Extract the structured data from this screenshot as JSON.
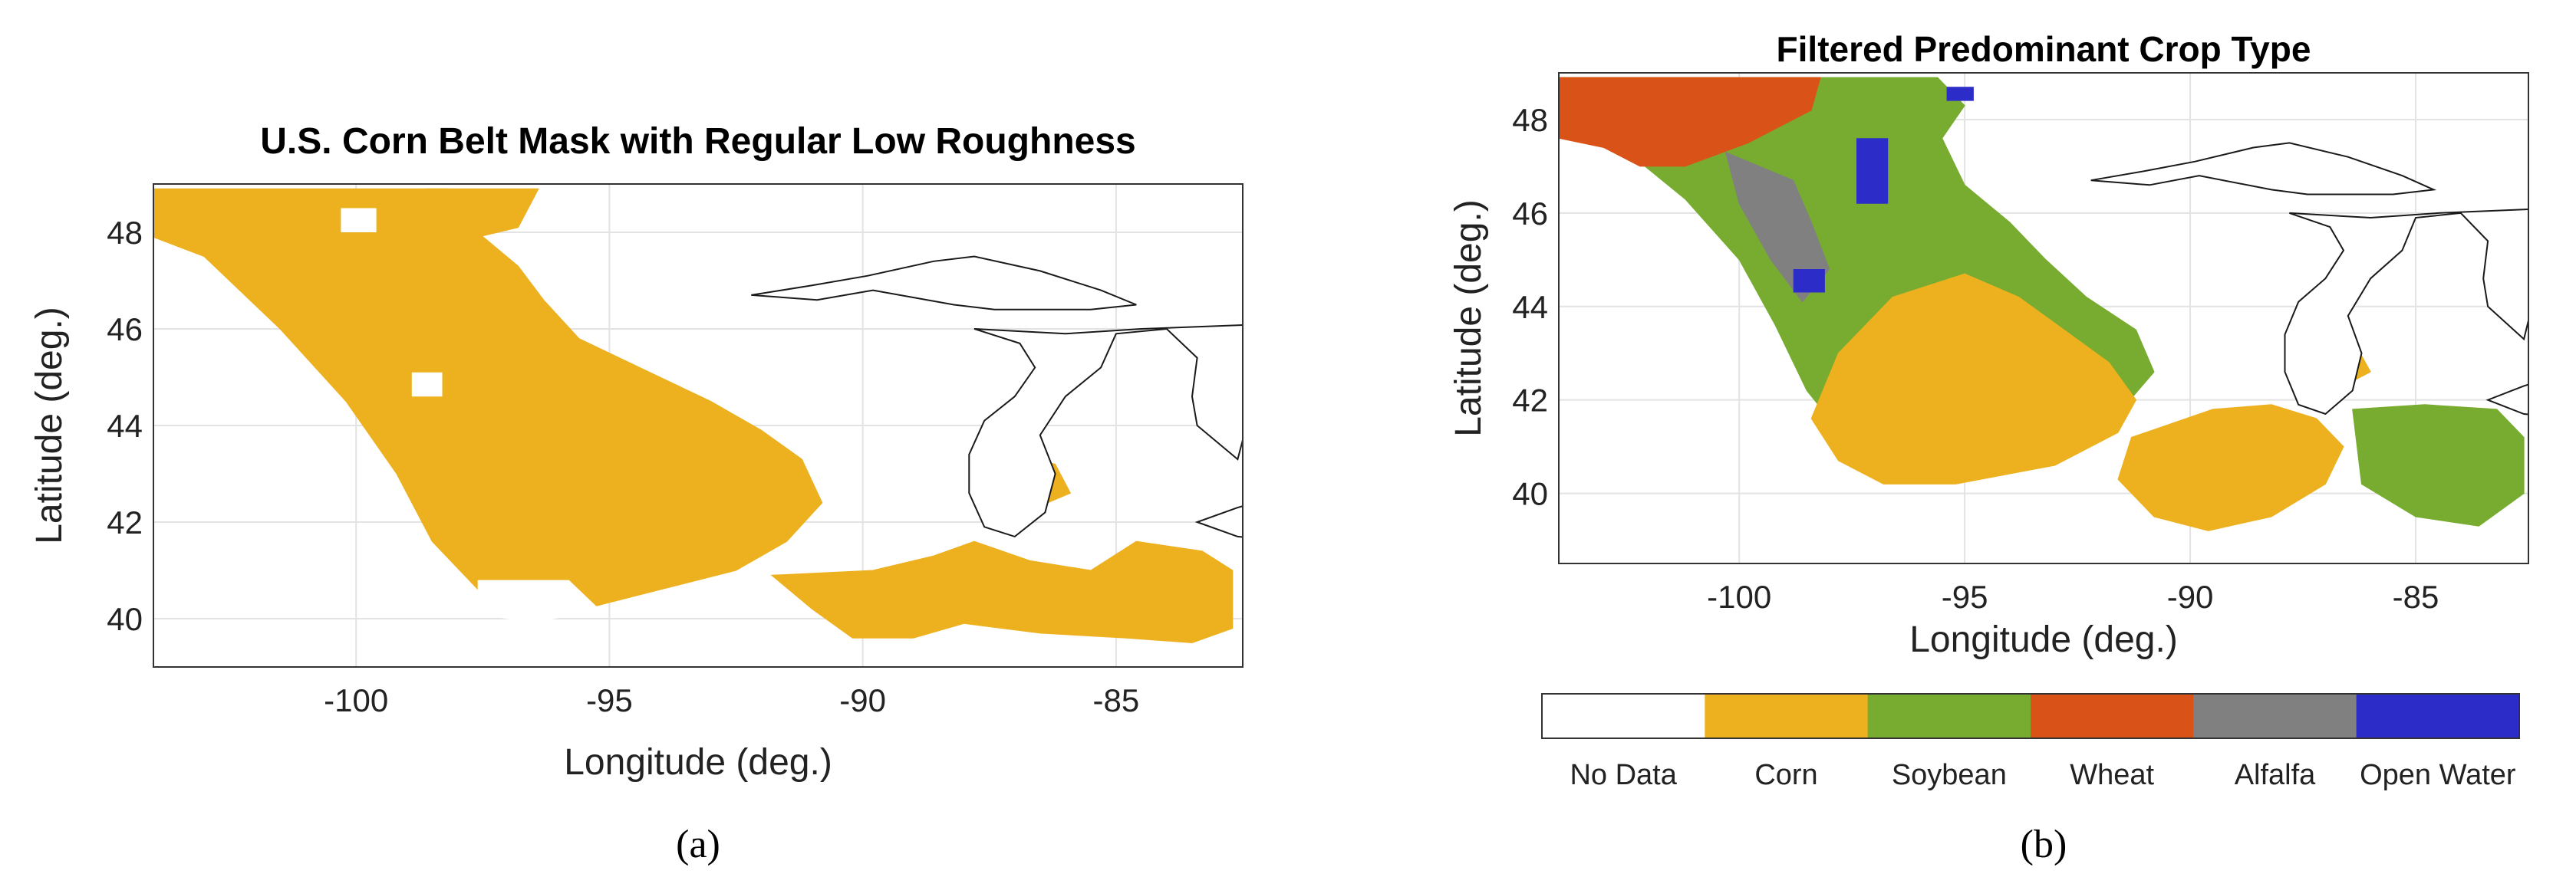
{
  "chart_data": [
    {
      "type": "heatmap",
      "panel_label": "(a)",
      "title": "U.S. Corn Belt Mask with Regular Low Roughness",
      "xlabel": "Longitude (deg.)",
      "ylabel": "Latitude (deg.)",
      "xlim": [
        -104,
        -82.5
      ],
      "ylim": [
        39,
        49
      ],
      "xticks": [
        -100,
        -95,
        -90,
        -85
      ],
      "yticks": [
        40,
        42,
        44,
        46,
        48
      ],
      "xtick_labels": [
        "-100",
        "-95",
        "-90",
        "-85"
      ],
      "ytick_labels": [
        "40",
        "42",
        "44",
        "46",
        "48"
      ],
      "grid": true,
      "mask_color": "#EDB120",
      "regions": [
        {
          "name": "northern-plains",
          "poly": [
            [
              -104,
              48.9
            ],
            [
              -98.2,
              48.9
            ],
            [
              -97.6,
              48.0
            ],
            [
              -96.8,
              47.3
            ],
            [
              -96.3,
              46.6
            ],
            [
              -95.6,
              45.8
            ],
            [
              -94.4,
              45.2
            ],
            [
              -93.0,
              44.5
            ],
            [
              -92.0,
              43.9
            ],
            [
              -91.2,
              43.3
            ],
            [
              -90.8,
              42.4
            ],
            [
              -91.5,
              41.6
            ],
            [
              -92.5,
              41.0
            ],
            [
              -94.0,
              40.6
            ],
            [
              -95.5,
              40.2
            ],
            [
              -97.5,
              40.5
            ],
            [
              -98.5,
              41.6
            ],
            [
              -99.2,
              43.0
            ],
            [
              -100.2,
              44.5
            ],
            [
              -101.5,
              46.0
            ],
            [
              -103.0,
              47.5
            ],
            [
              -104,
              47.9
            ]
          ]
        },
        {
          "name": "southern-corn",
          "poly": [
            [
              -91.8,
              40.9
            ],
            [
              -89.8,
              41.0
            ],
            [
              -88.6,
              41.3
            ],
            [
              -87.8,
              41.6
            ],
            [
              -86.7,
              41.2
            ],
            [
              -85.5,
              41.0
            ],
            [
              -84.6,
              41.6
            ],
            [
              -83.3,
              41.4
            ],
            [
              -82.7,
              41.0
            ],
            [
              -82.7,
              39.8
            ],
            [
              -83.5,
              39.5
            ],
            [
              -84.8,
              39.6
            ],
            [
              -86.5,
              39.7
            ],
            [
              -88.0,
              39.9
            ],
            [
              -89.0,
              39.6
            ],
            [
              -90.2,
              39.6
            ],
            [
              -91.0,
              40.2
            ]
          ]
        },
        {
          "name": "michigan-pockets",
          "poly": [
            [
              -87.4,
              43.5
            ],
            [
              -86.2,
              43.2
            ],
            [
              -85.9,
              42.6
            ],
            [
              -86.8,
              42.2
            ],
            [
              -87.6,
              42.4
            ],
            [
              -87.8,
              43.0
            ]
          ]
        },
        {
          "name": "dakota-north",
          "poly": [
            [
              -98.6,
              48.9
            ],
            [
              -96.4,
              48.9
            ],
            [
              -96.8,
              48.1
            ],
            [
              -97.6,
              47.9
            ]
          ]
        }
      ],
      "holes": [
        {
          "name": "hole-nd",
          "poly": [
            [
              -100.3,
              48.5
            ],
            [
              -99.6,
              48.5
            ],
            [
              -99.6,
              48.0
            ],
            [
              -100.3,
              48.0
            ]
          ]
        },
        {
          "name": "hole-sd",
          "poly": [
            [
              -98.9,
              45.1
            ],
            [
              -98.3,
              45.1
            ],
            [
              -98.3,
              44.6
            ],
            [
              -98.9,
              44.6
            ]
          ]
        },
        {
          "name": "hole-ne",
          "poly": [
            [
              -97.6,
              40.8
            ],
            [
              -95.8,
              40.8
            ],
            [
              -95.2,
              40.2
            ],
            [
              -96.5,
              39.9
            ],
            [
              -97.6,
              40.1
            ]
          ]
        }
      ]
    },
    {
      "type": "heatmap",
      "panel_label": "(b)",
      "title": "Filtered Predominant Crop Type",
      "xlabel": "Longitude (deg.)",
      "ylabel": "Latitude (deg.)",
      "xlim": [
        -104,
        -82.5
      ],
      "ylim": [
        38.5,
        49
      ],
      "xticks": [
        -100,
        -95,
        -90,
        -85
      ],
      "yticks": [
        40,
        42,
        44,
        46,
        48
      ],
      "xtick_labels": [
        "-100",
        "-95",
        "-90",
        "-85"
      ],
      "ytick_labels": [
        "40",
        "42",
        "44",
        "46",
        "48"
      ],
      "grid": true,
      "colorbar": {
        "categories": [
          "No Data",
          "Corn",
          "Soybean",
          "Wheat",
          "Alfalfa",
          "Open Water"
        ],
        "colors": [
          "#FFFFFF",
          "#EDB120",
          "#77AC30",
          "#D95319",
          "#808080",
          "#2C2CC8"
        ]
      },
      "regions": [
        {
          "crop": "Soybean",
          "poly": [
            [
              -104,
              48.9
            ],
            [
              -95.6,
              48.9
            ],
            [
              -95.0,
              48.3
            ],
            [
              -95.5,
              47.6
            ],
            [
              -95.0,
              46.6
            ],
            [
              -94.0,
              45.8
            ],
            [
              -93.2,
              45.0
            ],
            [
              -92.3,
              44.2
            ],
            [
              -91.2,
              43.5
            ],
            [
              -90.8,
              42.6
            ],
            [
              -91.6,
              41.7
            ],
            [
              -93.0,
              40.9
            ],
            [
              -95.0,
              40.3
            ],
            [
              -96.7,
              40.3
            ],
            [
              -97.5,
              41.0
            ],
            [
              -98.5,
              42.2
            ],
            [
              -99.2,
              43.6
            ],
            [
              -100.0,
              45.0
            ],
            [
              -101.2,
              46.3
            ],
            [
              -102.6,
              47.4
            ],
            [
              -104,
              48.0
            ]
          ]
        },
        {
          "crop": "Wheat",
          "poly": [
            [
              -104,
              48.9
            ],
            [
              -98.2,
              48.9
            ],
            [
              -98.4,
              48.2
            ],
            [
              -99.8,
              47.5
            ],
            [
              -101.2,
              47.0
            ],
            [
              -102.2,
              47.0
            ],
            [
              -103.0,
              47.4
            ],
            [
              -104,
              47.6
            ]
          ]
        },
        {
          "crop": "Alfalfa",
          "poly": [
            [
              -100.3,
              47.3
            ],
            [
              -98.8,
              46.7
            ],
            [
              -98.4,
              45.8
            ],
            [
              -98.0,
              44.8
            ],
            [
              -98.6,
              44.1
            ],
            [
              -99.3,
              45.0
            ],
            [
              -100.0,
              46.2
            ]
          ]
        },
        {
          "crop": "Corn",
          "poly": [
            [
              -96.6,
              44.2
            ],
            [
              -95.0,
              44.7
            ],
            [
              -93.8,
              44.2
            ],
            [
              -92.8,
              43.5
            ],
            [
              -91.8,
              42.8
            ],
            [
              -91.2,
              42.0
            ],
            [
              -91.6,
              41.3
            ],
            [
              -93.0,
              40.6
            ],
            [
              -95.2,
              40.2
            ],
            [
              -96.8,
              40.2
            ],
            [
              -97.8,
              40.7
            ],
            [
              -98.4,
              41.6
            ],
            [
              -97.8,
              43.0
            ]
          ]
        },
        {
          "crop": "Corn",
          "poly": [
            [
              -91.3,
              41.2
            ],
            [
              -89.5,
              41.8
            ],
            [
              -88.2,
              41.9
            ],
            [
              -87.2,
              41.6
            ],
            [
              -86.6,
              41.0
            ],
            [
              -87.0,
              40.2
            ],
            [
              -88.2,
              39.5
            ],
            [
              -89.6,
              39.2
            ],
            [
              -90.8,
              39.5
            ],
            [
              -91.6,
              40.3
            ]
          ]
        },
        {
          "crop": "Soybean",
          "poly": [
            [
              -86.4,
              41.8
            ],
            [
              -84.8,
              41.9
            ],
            [
              -83.2,
              41.8
            ],
            [
              -82.6,
              41.2
            ],
            [
              -82.6,
              40.0
            ],
            [
              -83.6,
              39.3
            ],
            [
              -85.0,
              39.5
            ],
            [
              -86.2,
              40.2
            ]
          ]
        },
        {
          "crop": "Corn",
          "poly": [
            [
              -87.4,
              43.6
            ],
            [
              -86.4,
              43.3
            ],
            [
              -86.0,
              42.6
            ],
            [
              -86.8,
              42.2
            ],
            [
              -87.6,
              42.5
            ],
            [
              -87.8,
              43.1
            ]
          ]
        }
      ],
      "water_marks": [
        {
          "name": "lake-of-the-woods",
          "poly": [
            [
              -95.4,
              48.7
            ],
            [
              -94.8,
              48.7
            ],
            [
              -94.8,
              48.4
            ],
            [
              -95.4,
              48.4
            ]
          ]
        },
        {
          "name": "red-river",
          "poly": [
            [
              -97.4,
              47.6
            ],
            [
              -96.7,
              47.6
            ],
            [
              -96.7,
              46.2
            ],
            [
              -97.4,
              46.2
            ]
          ]
        },
        {
          "name": "se-sd-water",
          "poly": [
            [
              -98.8,
              44.8
            ],
            [
              -98.1,
              44.8
            ],
            [
              -98.1,
              44.3
            ],
            [
              -98.8,
              44.3
            ]
          ]
        }
      ]
    }
  ],
  "lakes": {
    "superior": [
      [
        -92.2,
        46.7
      ],
      [
        -91.0,
        46.9
      ],
      [
        -89.9,
        47.1
      ],
      [
        -88.6,
        47.4
      ],
      [
        -87.8,
        47.5
      ],
      [
        -86.5,
        47.2
      ],
      [
        -85.3,
        46.8
      ],
      [
        -84.6,
        46.5
      ],
      [
        -85.5,
        46.4
      ],
      [
        -87.4,
        46.4
      ],
      [
        -88.2,
        46.5
      ],
      [
        -89.8,
        46.8
      ],
      [
        -90.9,
        46.6
      ]
    ],
    "michigan_huron": [
      [
        -87.8,
        46.0
      ],
      [
        -86.9,
        45.7
      ],
      [
        -86.6,
        45.2
      ],
      [
        -87.0,
        44.6
      ],
      [
        -87.6,
        44.1
      ],
      [
        -87.9,
        43.4
      ],
      [
        -87.9,
        42.6
      ],
      [
        -87.6,
        41.9
      ],
      [
        -87.0,
        41.7
      ],
      [
        -86.4,
        42.2
      ],
      [
        -86.2,
        43.0
      ],
      [
        -86.5,
        43.8
      ],
      [
        -86.0,
        44.6
      ],
      [
        -85.3,
        45.2
      ],
      [
        -85.0,
        45.9
      ],
      [
        -84.0,
        46.0
      ],
      [
        -83.4,
        45.4
      ],
      [
        -83.5,
        44.6
      ],
      [
        -83.4,
        44.0
      ],
      [
        -82.6,
        43.3
      ],
      [
        -82.4,
        44.1
      ],
      [
        -81.7,
        44.9
      ],
      [
        -81.2,
        45.3
      ],
      [
        -80.6,
        45.5
      ],
      [
        -80.0,
        46.0
      ],
      [
        -82.0,
        46.1
      ],
      [
        -84.5,
        46.0
      ],
      [
        -86.0,
        45.9
      ]
    ],
    "erie": [
      [
        -83.4,
        42.0
      ],
      [
        -82.6,
        41.7
      ],
      [
        -81.5,
        41.6
      ],
      [
        -80.5,
        41.9
      ],
      [
        -79.5,
        42.3
      ],
      [
        -80.3,
        42.6
      ],
      [
        -81.6,
        42.6
      ],
      [
        -82.6,
        42.3
      ]
    ]
  }
}
